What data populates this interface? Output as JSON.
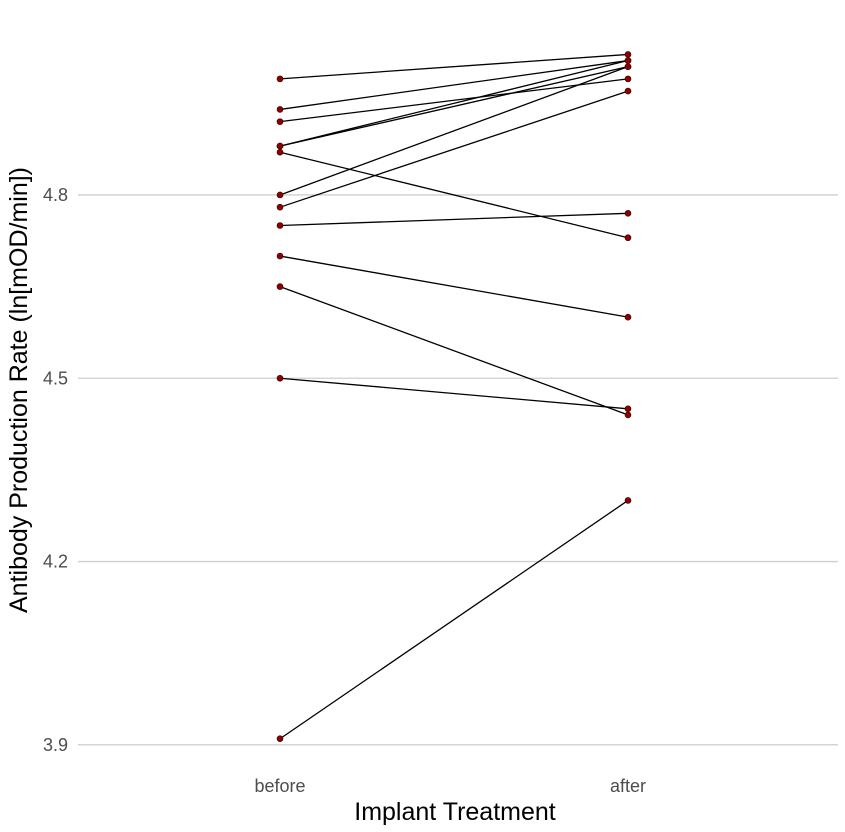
{
  "chart_data": {
    "type": "line",
    "xlabel": "Implant Treatment",
    "ylabel": "Antibody Production Rate (ln[mOD/min])",
    "categories": [
      "before",
      "after"
    ],
    "ylim": [
      3.885,
      5.07
    ],
    "yticks": [
      3.9,
      4.2,
      4.5,
      4.8
    ],
    "ytick_labels": [
      "3.9",
      "4.2",
      "4.5",
      "4.8"
    ],
    "grid": "horizontal major",
    "legend": "none",
    "colors": {
      "line": "#000000",
      "point": "#8b0000",
      "grid": "#cfcfcf"
    },
    "pairs": [
      {
        "before": 4.99,
        "after": 5.03
      },
      {
        "before": 4.94,
        "after": 5.02
      },
      {
        "before": 4.92,
        "after": 4.99
      },
      {
        "before": 4.88,
        "after": 5.02
      },
      {
        "before": 4.88,
        "after": 5.01
      },
      {
        "before": 4.87,
        "after": 4.73
      },
      {
        "before": 4.8,
        "after": 5.01
      },
      {
        "before": 4.78,
        "after": 4.97
      },
      {
        "before": 4.75,
        "after": 4.77
      },
      {
        "before": 4.7,
        "after": 4.6
      },
      {
        "before": 4.65,
        "after": 4.44
      },
      {
        "before": 4.5,
        "after": 4.45
      },
      {
        "before": 3.91,
        "after": 4.3
      }
    ]
  }
}
